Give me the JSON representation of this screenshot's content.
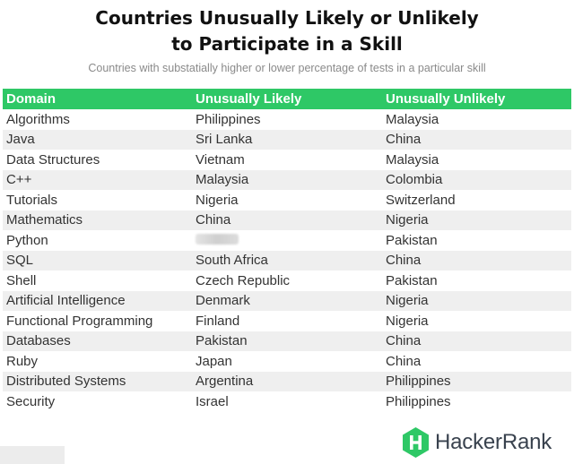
{
  "title": {
    "line1": "Countries Unusually Likely or Unlikely",
    "line2": "to Participate in a Skill"
  },
  "subtitle": "Countries with substatially higher or lower percentage of tests in a particular skill",
  "table": {
    "headers": [
      "Domain",
      "Unusually Likely",
      "Unusually Unlikely"
    ],
    "rows": [
      [
        "Algorithms",
        "Philippines",
        "Malaysia"
      ],
      [
        "Java",
        "Sri Lanka",
        "China"
      ],
      [
        "Data Structures",
        "Vietnam",
        "Malaysia"
      ],
      [
        "C++",
        "Malaysia",
        "Colombia"
      ],
      [
        "Tutorials",
        "Nigeria",
        "Switzerland"
      ],
      [
        "Mathematics",
        "China",
        "Nigeria"
      ],
      [
        "Python",
        "",
        "Pakistan"
      ],
      [
        "SQL",
        "South Africa",
        "China"
      ],
      [
        "Shell",
        "Czech Republic",
        "Pakistan"
      ],
      [
        "Artificial Intelligence",
        "Denmark",
        "Nigeria"
      ],
      [
        "Functional Programming",
        "Finland",
        "Nigeria"
      ],
      [
        "Databases",
        "Pakistan",
        "China"
      ],
      [
        "Ruby",
        "Japan",
        "China"
      ],
      [
        "Distributed Systems",
        "Argentina",
        "Philippines"
      ],
      [
        "Security",
        "Israel",
        "Philippines"
      ]
    ]
  },
  "logo": {
    "text": "HackerRank",
    "icon": "hackerrank-hexagon-icon",
    "color": "#2ec866"
  },
  "colors": {
    "header_bg": "#2ec866",
    "stripe_bg": "#efefef"
  }
}
